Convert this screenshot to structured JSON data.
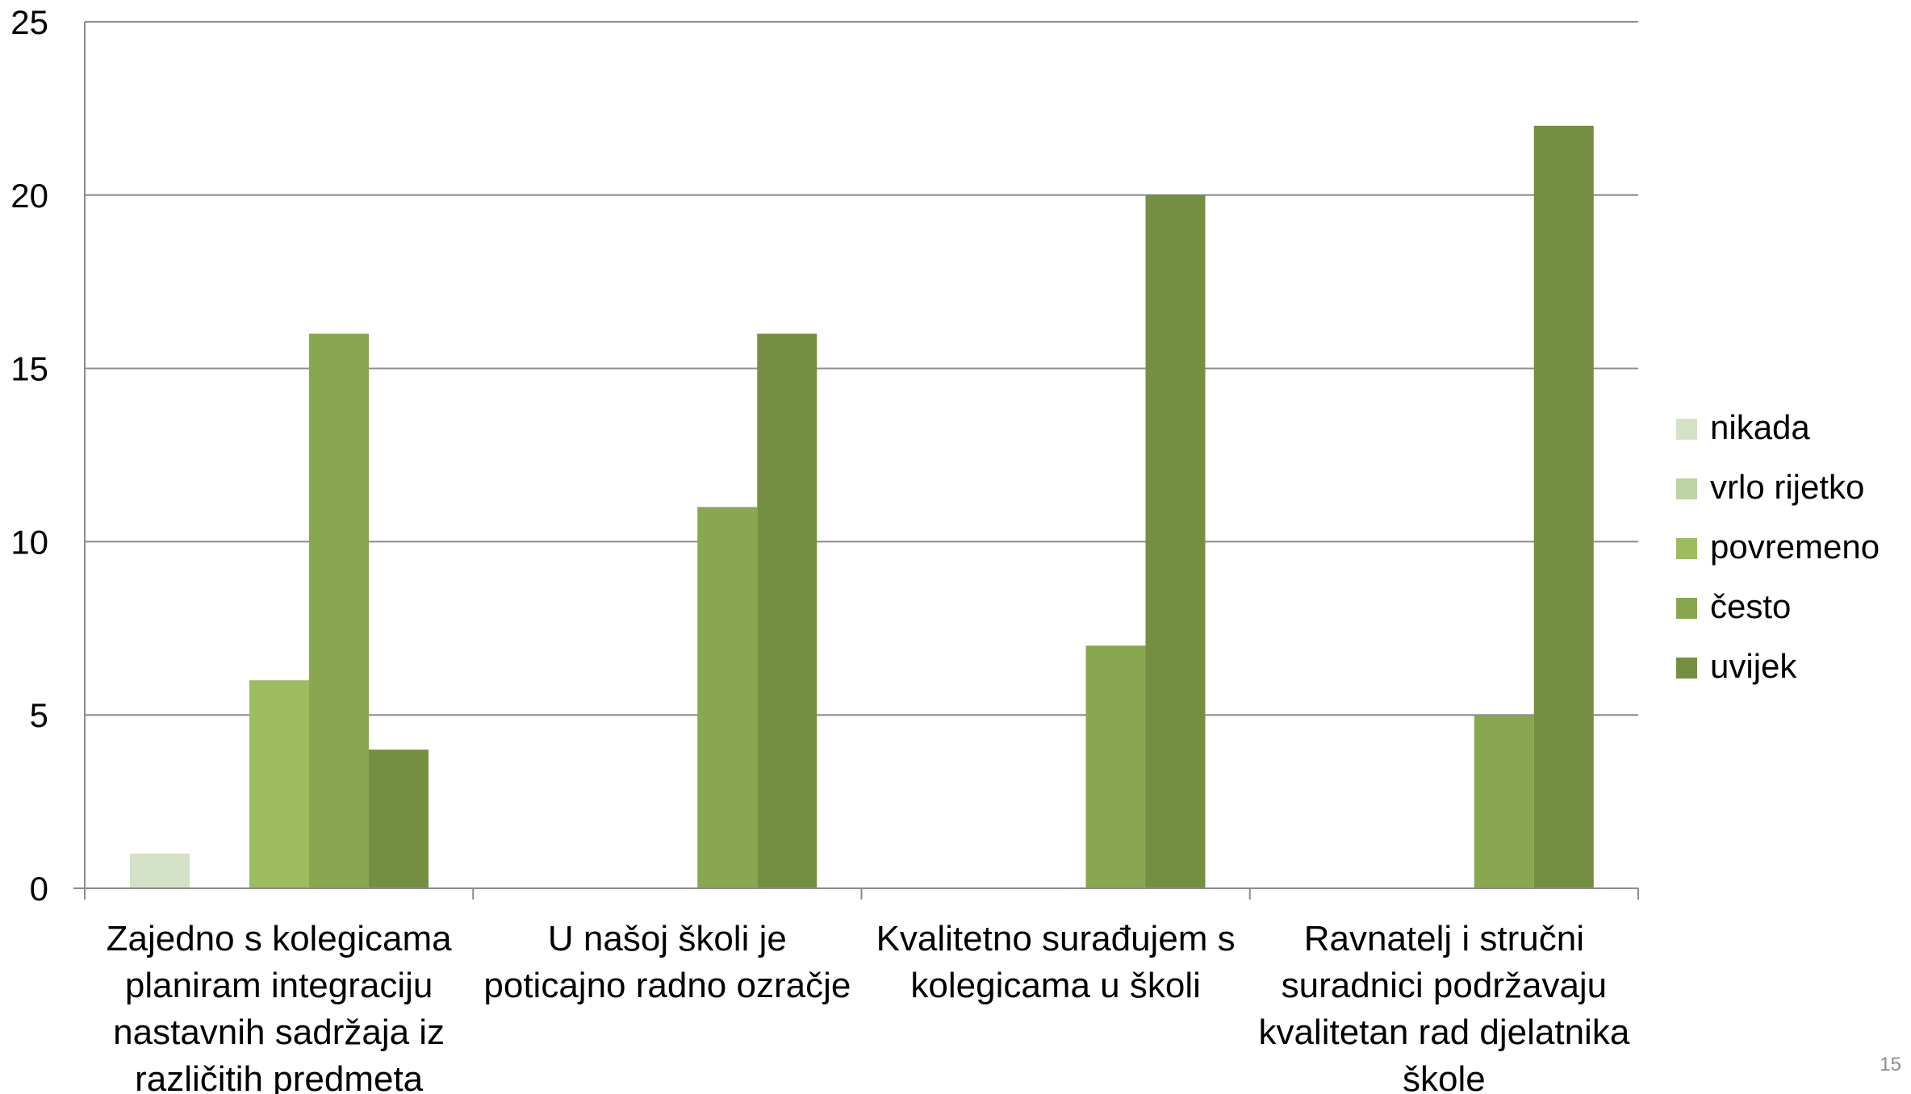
{
  "page_number": "15",
  "colors": {
    "nikada": "#d3e2c6",
    "vrlo rijetko": "#bed3a6",
    "povremeno": "#9dbb5f",
    "često": "#89a651",
    "uvijek": "#758f42",
    "gridline": "#8c8c8c",
    "axis": "#8c8c8c"
  },
  "chart_data": {
    "type": "bar",
    "title": "",
    "xlabel": "",
    "ylabel": "",
    "ylim": [
      0,
      25
    ],
    "yticks": [
      0,
      5,
      10,
      15,
      20,
      25
    ],
    "grid": true,
    "legend_position": "right",
    "categories": [
      [
        "Zajedno s kolegicama",
        "planiram integraciju",
        "nastavnih sadržaja iz",
        "različitih predmeta"
      ],
      [
        "U našoj školi je",
        "poticajno radno ozračje"
      ],
      [
        "Kvalitetno surađujem s",
        "kolegicama u školi"
      ],
      [
        "Ravnatelj i stručni",
        "suradnici podržavaju",
        "kvalitetan rad djelatnika",
        "škole"
      ]
    ],
    "series": [
      {
        "name": "nikada",
        "values": [
          1,
          0,
          0,
          0
        ]
      },
      {
        "name": "vrlo rijetko",
        "values": [
          0,
          0,
          0,
          0
        ]
      },
      {
        "name": "povremeno",
        "values": [
          6,
          0,
          0,
          0
        ]
      },
      {
        "name": "često",
        "values": [
          16,
          11,
          7,
          5
        ]
      },
      {
        "name": "uvijek",
        "values": [
          4,
          16,
          20,
          22
        ]
      }
    ]
  }
}
